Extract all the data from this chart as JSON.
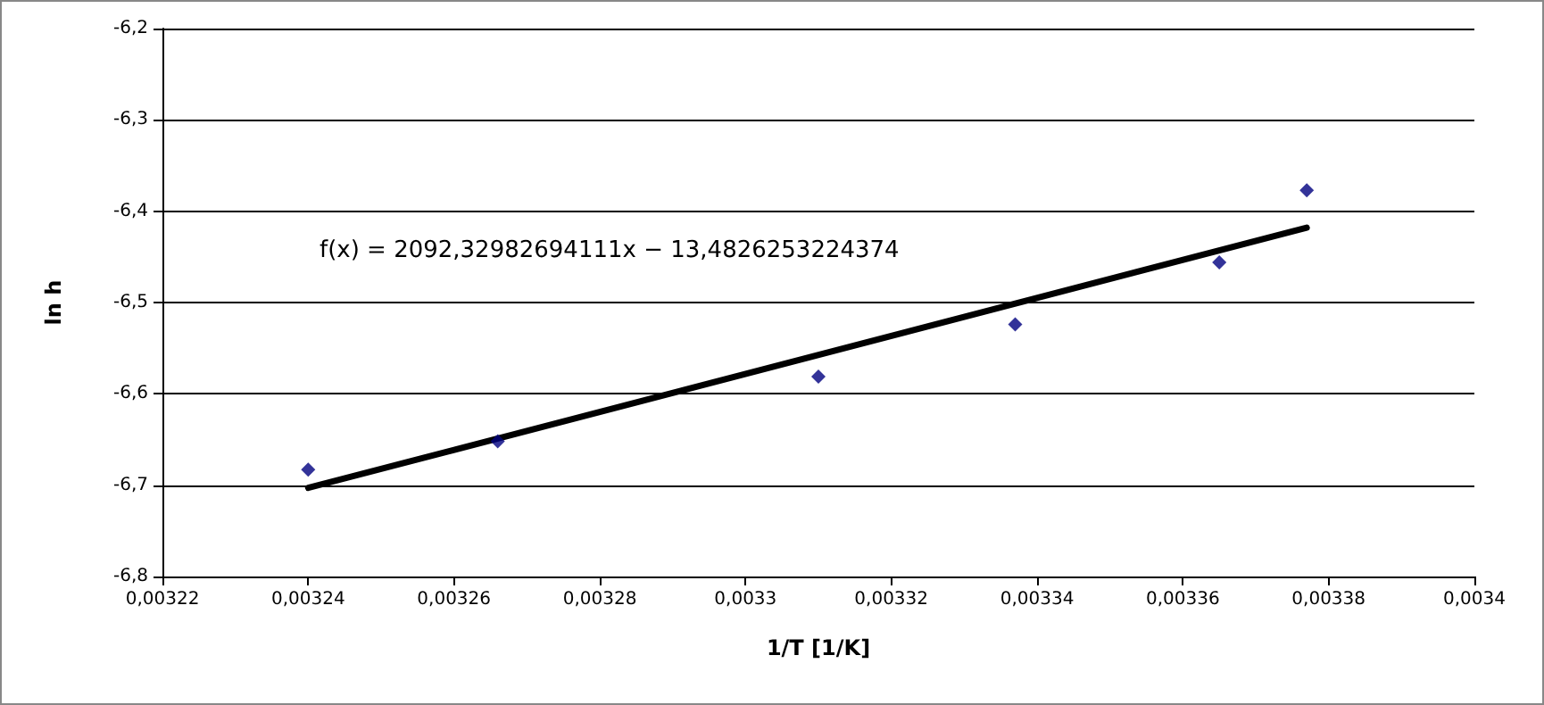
{
  "chart_data": {
    "type": "scatter",
    "xlabel": "1/T [1/K]",
    "ylabel": "ln h",
    "annotations": [
      "f(x) = 2092,32982694111x − 13,4826253224374"
    ],
    "xlim": [
      0.00322,
      0.0034
    ],
    "xticks": [
      {
        "value": 0.00322,
        "label": "0,00322"
      },
      {
        "value": 0.00324,
        "label": "0,00324"
      },
      {
        "value": 0.00326,
        "label": "0,00326"
      },
      {
        "value": 0.00328,
        "label": "0,00328"
      },
      {
        "value": 0.0033,
        "label": "0,0033"
      },
      {
        "value": 0.00332,
        "label": "0,00332"
      },
      {
        "value": 0.00334,
        "label": "0,00334"
      },
      {
        "value": 0.00336,
        "label": "0,00336"
      },
      {
        "value": 0.00338,
        "label": "0,00338"
      },
      {
        "value": 0.0034,
        "label": "0,0034"
      }
    ],
    "ylim": [
      -6.8,
      -6.2
    ],
    "yticks": [
      {
        "value": -6.8,
        "label": "-6,8"
      },
      {
        "value": -6.7,
        "label": "-6,7"
      },
      {
        "value": -6.6,
        "label": "-6,6"
      },
      {
        "value": -6.5,
        "label": "-6,5"
      },
      {
        "value": -6.4,
        "label": "-6,4"
      },
      {
        "value": -6.3,
        "label": "-6,3"
      },
      {
        "value": -6.2,
        "label": "-6,2"
      }
    ],
    "grid": "y",
    "series": [
      {
        "marker": "diamond",
        "color": "#000080",
        "x": [
          0.00324,
          0.003266,
          0.00331,
          0.003337,
          0.003365,
          0.003377
        ],
        "values": [
          -6.683,
          -6.652,
          -6.581,
          -6.524,
          -6.456,
          -6.377
        ]
      },
      {
        "type": "line",
        "marker": "none",
        "line_style": "solid",
        "color": "#000000",
        "x": [
          0.00324,
          0.003377
        ],
        "values": [
          -6.703,
          -6.418
        ]
      }
    ]
  }
}
